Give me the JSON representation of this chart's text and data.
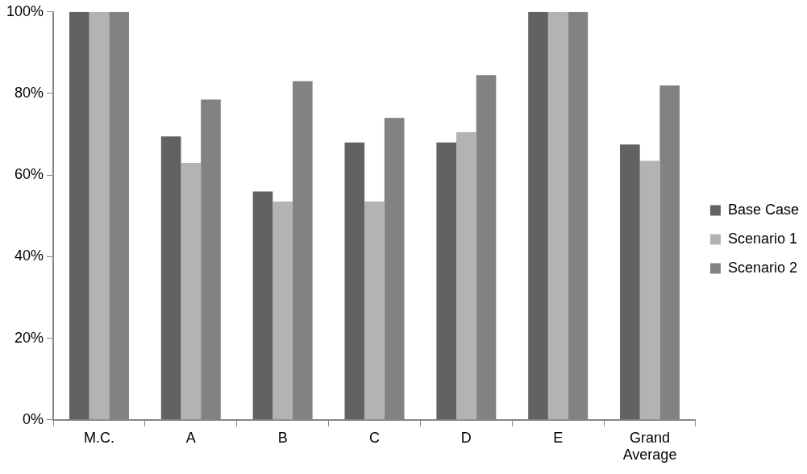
{
  "chart_data": {
    "type": "bar",
    "categories": [
      "M.C.",
      "A",
      "B",
      "C",
      "D",
      "E",
      "Grand Average"
    ],
    "series": [
      {
        "name": "Base Case",
        "color": "#626262",
        "values": [
          100,
          69.5,
          56,
          68,
          68,
          100,
          67.5
        ]
      },
      {
        "name": "Scenario 1",
        "color": "#b3b3b3",
        "values": [
          100,
          63,
          53.5,
          53.5,
          70.5,
          100,
          63.5
        ]
      },
      {
        "name": "Scenario 2",
        "color": "#828282",
        "values": [
          100,
          78.5,
          83,
          74,
          84.5,
          100,
          82
        ]
      }
    ],
    "ylim": [
      0,
      100
    ],
    "yticks": [
      {
        "value": 0,
        "label": "0%"
      },
      {
        "value": 20,
        "label": "20%"
      },
      {
        "value": 40,
        "label": "40%"
      },
      {
        "value": 60,
        "label": "60%"
      },
      {
        "value": 80,
        "label": "80%"
      },
      {
        "value": 100,
        "label": "100%"
      }
    ],
    "grid": false,
    "legend": "right"
  }
}
